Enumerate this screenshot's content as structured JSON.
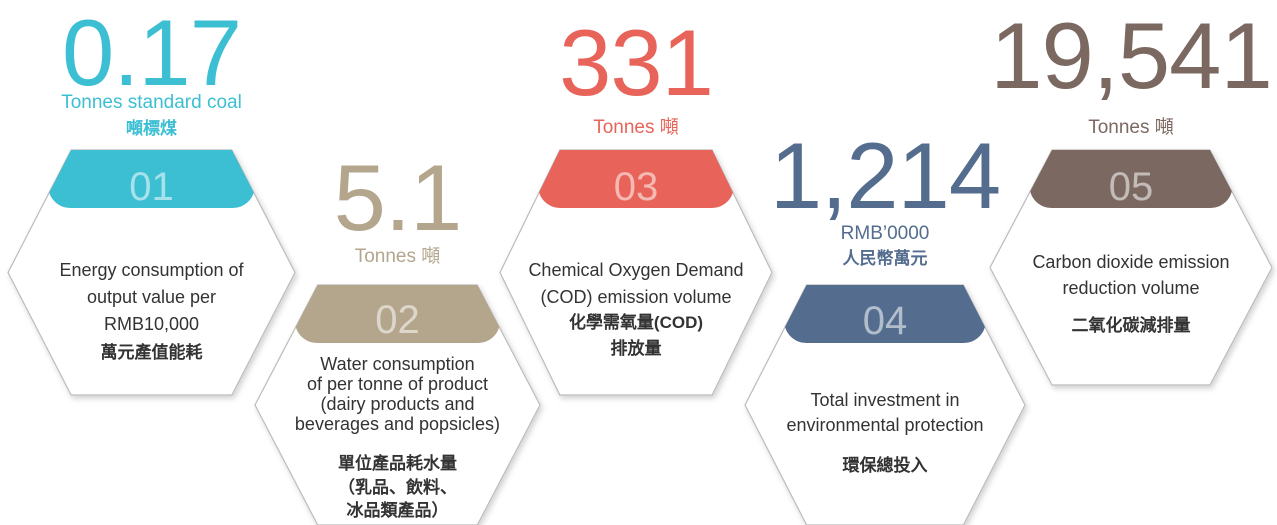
{
  "items": [
    {
      "value": "0.17",
      "unit": [
        "Tonnes standard coal",
        "噸標煤"
      ],
      "index": "01",
      "color": "#3cbfd3",
      "description": [
        "Energy consumption of",
        "output value per",
        "RMB10,000"
      ],
      "description_zh": [
        "萬元產值能耗"
      ]
    },
    {
      "value": "5.1",
      "unit": [
        "Tonnes 噸"
      ],
      "index": "02",
      "color": "#b3a68d",
      "description": [
        "Water consumption",
        "of per tonne of product",
        "(dairy products and",
        "beverages and popsicles)"
      ],
      "description_zh": [
        "單位產品耗水量",
        "（乳品、飲料、",
        "冰品類產品）"
      ]
    },
    {
      "value": "331",
      "unit": [
        "Tonnes 噸"
      ],
      "index": "03",
      "color": "#e8645a",
      "description": [
        "Chemical Oxygen Demand",
        "(COD) emission volume"
      ],
      "description_zh": [
        "化學需氧量(COD)",
        "排放量"
      ]
    },
    {
      "value": "1,214",
      "unit": [
        "RMB’0000",
        "人民幣萬元"
      ],
      "index": "04",
      "color": "#546d8f",
      "description": [
        "Total investment in",
        "environmental protection"
      ],
      "description_zh": [
        "環保總投入"
      ]
    },
    {
      "value": "19,541",
      "unit": [
        "Tonnes 噸"
      ],
      "index": "05",
      "color": "#7b6860",
      "description": [
        "Carbon dioxide emission",
        "reduction volume"
      ],
      "description_zh": [
        "二氧化碳減排量"
      ]
    }
  ]
}
